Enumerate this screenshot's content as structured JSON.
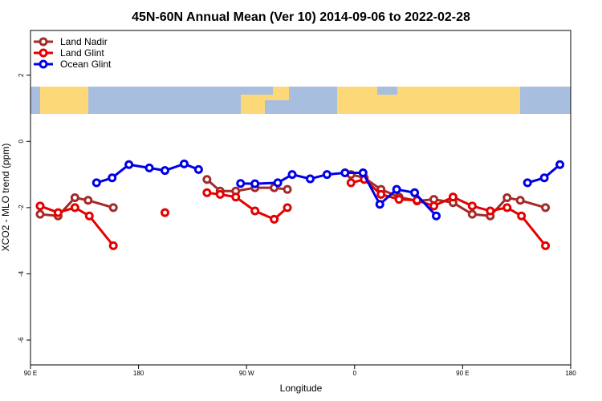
{
  "chart_data": {
    "type": "line",
    "title": "45N-60N Annual Mean (Ver 10)   2014-09-06 to 2022-02-28",
    "x_label": "Longitude",
    "y_label": "XCO2 - MLO trend (ppm)",
    "xlim": [
      90,
      540
    ],
    "ylim": [
      -6.75,
      3.35
    ],
    "xticks": [
      {
        "value": 90,
        "label": "90 E"
      },
      {
        "value": 180,
        "label": "180"
      },
      {
        "value": 270,
        "label": "90 W"
      },
      {
        "value": 360,
        "label": "0"
      },
      {
        "value": 450,
        "label": "90 E"
      },
      {
        "value": 540,
        "label": "180"
      }
    ],
    "yticks": [
      2,
      0,
      -2,
      -4,
      -6
    ],
    "legend": "topleft",
    "series": [
      {
        "name": "Land Nadir",
        "color": "#a52a2a",
        "x": [
          98,
          113,
          127,
          138,
          159,
          null,
          237,
          248,
          261,
          277,
          293,
          304,
          null,
          357,
          368,
          382,
          397,
          412,
          426,
          442,
          458,
          473,
          487,
          498,
          519
        ],
        "values": [
          -2.2,
          -2.25,
          -1.7,
          -1.78,
          -2.0,
          null,
          -1.15,
          -1.5,
          -1.5,
          -1.4,
          -1.4,
          -1.45,
          null,
          -1.0,
          -1.1,
          -1.45,
          -1.68,
          -1.8,
          -1.75,
          -1.85,
          -2.2,
          -2.25,
          -1.7,
          -1.78,
          -2.0
        ]
      },
      {
        "name": "Land Glint",
        "color": "#e60000",
        "x": [
          98,
          113,
          127,
          139,
          159,
          null,
          202,
          null,
          237,
          248,
          261,
          277,
          293,
          304,
          null,
          357,
          368,
          382,
          397,
          412,
          426,
          442,
          458,
          473,
          487,
          499,
          519
        ],
        "values": [
          -1.95,
          -2.15,
          -2.0,
          -2.25,
          -3.15,
          null,
          -2.15,
          null,
          -1.55,
          -1.6,
          -1.68,
          -2.1,
          -2.35,
          -2.0,
          null,
          -1.25,
          -1.15,
          -1.6,
          -1.75,
          -1.78,
          -1.95,
          -1.68,
          -1.95,
          -2.1,
          -2.0,
          -2.25,
          -3.15
        ]
      },
      {
        "name": "Ocean Glint",
        "color": "#0000e6",
        "x": [
          145,
          158,
          172,
          189,
          202,
          218,
          230,
          null,
          265,
          277,
          296,
          308,
          323,
          337,
          352,
          367,
          381,
          395,
          410,
          428,
          null,
          504,
          518,
          531
        ],
        "values": [
          -1.25,
          -1.1,
          -0.7,
          -0.8,
          -0.88,
          -0.68,
          -0.85,
          null,
          -1.27,
          -1.28,
          -1.25,
          -1.0,
          -1.13,
          -1.0,
          -0.95,
          -0.95,
          -1.9,
          -1.45,
          -1.55,
          -2.25,
          null,
          -1.25,
          -1.1,
          -0.7
        ]
      }
    ]
  }
}
